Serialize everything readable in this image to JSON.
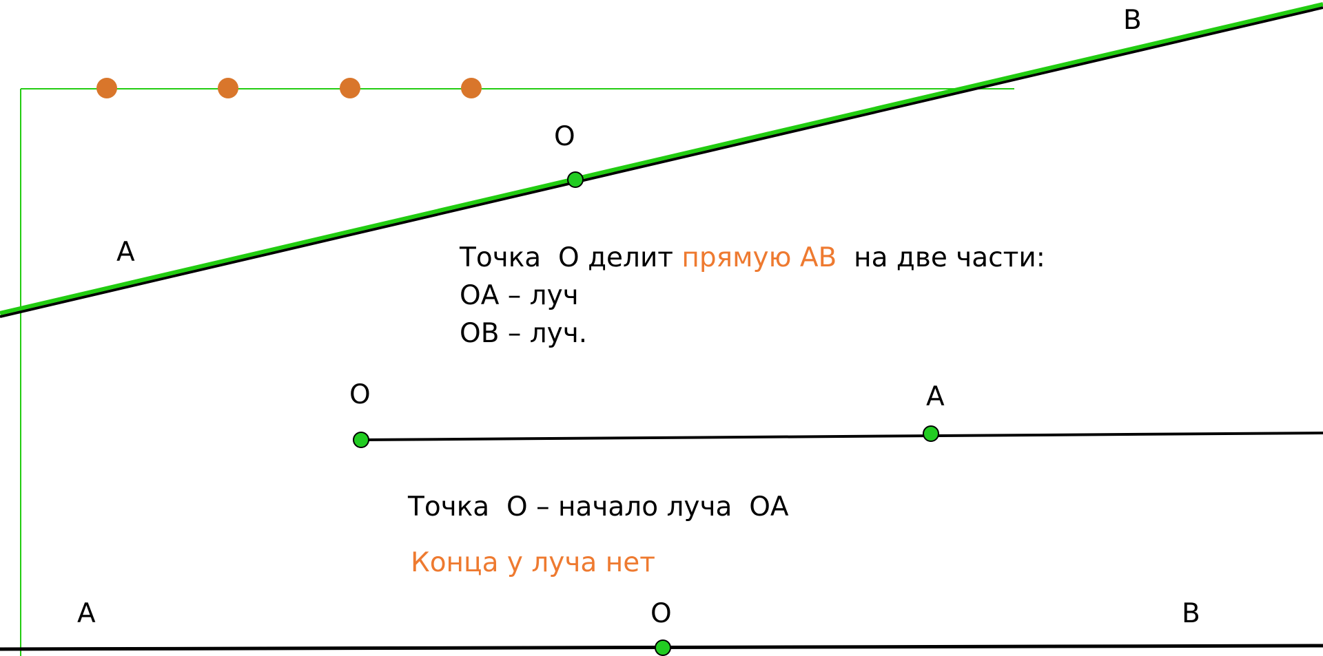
{
  "colors": {
    "line_green": "#22cc11",
    "point_green": "#22cc22",
    "bullet_orange": "#d9762b",
    "highlight_orange": "#ee7a30",
    "text": "#000000"
  },
  "icons": {
    "bullet": "orange-circle",
    "point": "green-circle"
  },
  "bullets_count": 4,
  "top_line": {
    "label_a": "A",
    "label_o": "O",
    "label_b": "B"
  },
  "text_block": {
    "line1_part1": "Точка  О делит ",
    "line1_highlight": "прямую АВ",
    "line1_part2": "  на две части:",
    "line2": "ОА – луч",
    "line3": "ОВ – луч."
  },
  "ray": {
    "label_o": "О",
    "label_a": "А"
  },
  "ray_caption": "Точка  О – начало луча  ОА",
  "ray_note": "Конца у луча нет",
  "bottom_line": {
    "label_a": "A",
    "label_o": "O",
    "label_b": "B"
  }
}
